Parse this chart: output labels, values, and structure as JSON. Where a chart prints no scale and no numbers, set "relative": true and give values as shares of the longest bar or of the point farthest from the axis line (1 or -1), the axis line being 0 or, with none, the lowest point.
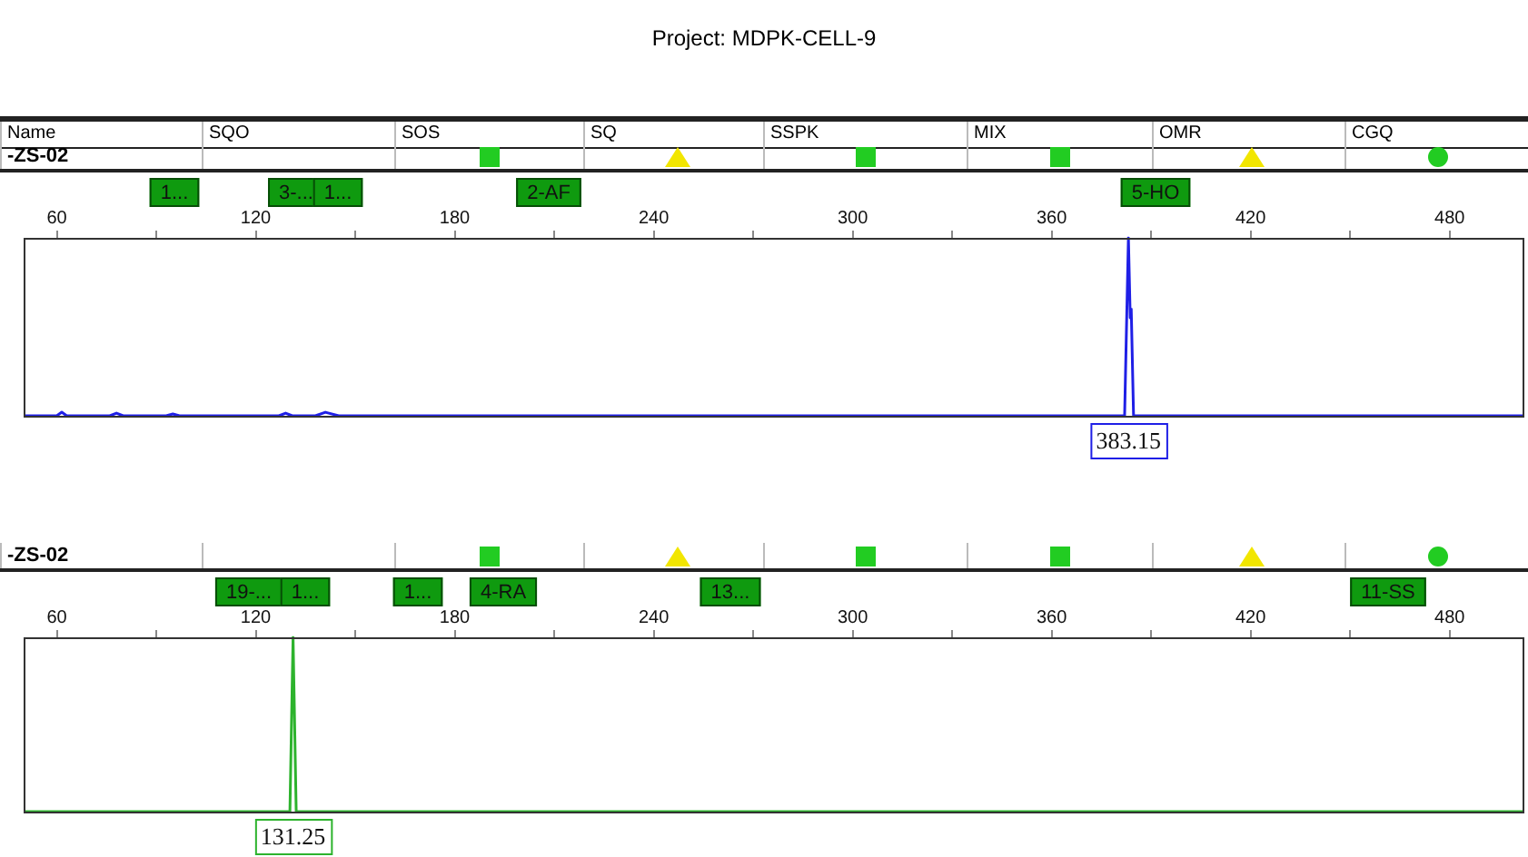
{
  "chart_data": [
    {
      "type": "line",
      "title": "Project: MDPK-CELL-9",
      "relative": true,
      "xlim": [
        50,
        502
      ],
      "xticks": [
        60,
        {
          "value": 90,
          "label": null
        },
        120,
        {
          "value": 150,
          "label": null
        },
        180,
        {
          "value": 210,
          "label": null
        },
        240,
        {
          "value": 270,
          "label": null
        },
        300,
        {
          "value": 330,
          "label": null
        },
        360,
        {
          "value": 390,
          "label": null
        },
        420,
        {
          "value": 450,
          "label": null
        },
        480
      ],
      "grid": false,
      "legend": false,
      "series": [
        {
          "color": "#1f1fe6",
          "x": [
            50,
            60,
            61.5,
            63,
            76,
            78,
            80,
            93,
            95,
            97,
            127,
            129,
            131,
            138,
            141,
            145,
            382,
            383.15,
            383.7,
            384,
            384.7,
            502
          ],
          "values": [
            0,
            0,
            0.02,
            0,
            0,
            0.015,
            0,
            0,
            0.01,
            0,
            0,
            0.015,
            0,
            0,
            0.02,
            0,
            0,
            1,
            0.55,
            0.6,
            0,
            0
          ]
        }
      ],
      "annotations": [
        "Name",
        "SQO",
        "SOS",
        "SQ",
        "SSPK",
        "MIX",
        "OMR",
        "CGQ",
        "-ZS-02",
        "1...",
        "3-...",
        "1...",
        "2-AF",
        "5-HO",
        {
          "text": "383.15",
          "x": 383.15,
          "y": 0
        }
      ]
    },
    {
      "type": "line",
      "relative": true,
      "xlim": [
        50,
        502
      ],
      "xticks": [
        60,
        {
          "value": 90,
          "label": null
        },
        120,
        {
          "value": 150,
          "label": null
        },
        180,
        {
          "value": 210,
          "label": null
        },
        240,
        {
          "value": 270,
          "label": null
        },
        300,
        {
          "value": 330,
          "label": null
        },
        360,
        {
          "value": 390,
          "label": null
        },
        420,
        {
          "value": 450,
          "label": null
        },
        480
      ],
      "grid": false,
      "legend": false,
      "series": [
        {
          "color": "#2db32d",
          "x": [
            50,
            130.3,
            131.25,
            132.2,
            502
          ],
          "values": [
            0,
            0,
            1,
            0,
            0
          ]
        }
      ],
      "annotations": [
        "-ZS-02",
        "19-...",
        "1...",
        "1...",
        "4-RA",
        "13...",
        "11-SS",
        {
          "text": "131.25",
          "x": 131.25,
          "y": 0
        }
      ]
    }
  ]
}
